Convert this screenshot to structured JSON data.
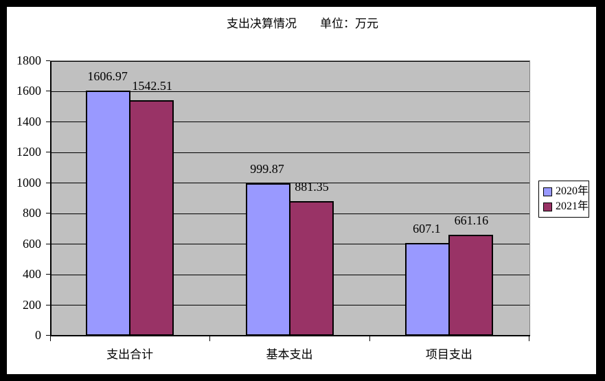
{
  "frame": {
    "background": "#ffffff",
    "border_color": "#000000"
  },
  "chart_data": {
    "type": "bar",
    "title": "支出决算情况　　单位：万元",
    "categories": [
      "支出合计",
      "基本支出",
      "项目支出"
    ],
    "series": [
      {
        "name": "2020年",
        "color": "#9999ff",
        "values": [
          1606.97,
          999.87,
          607.1
        ]
      },
      {
        "name": "2021年",
        "color": "#993366",
        "values": [
          1542.51,
          881.35,
          661.16
        ]
      }
    ],
    "ylim": [
      0,
      1800
    ],
    "ytick_step": 200,
    "grid": true,
    "gridline_color": "#000000",
    "plot_background": "#c0c0c0",
    "plot_border_color": "#808080",
    "legend_position": "right",
    "data_labels": true
  }
}
